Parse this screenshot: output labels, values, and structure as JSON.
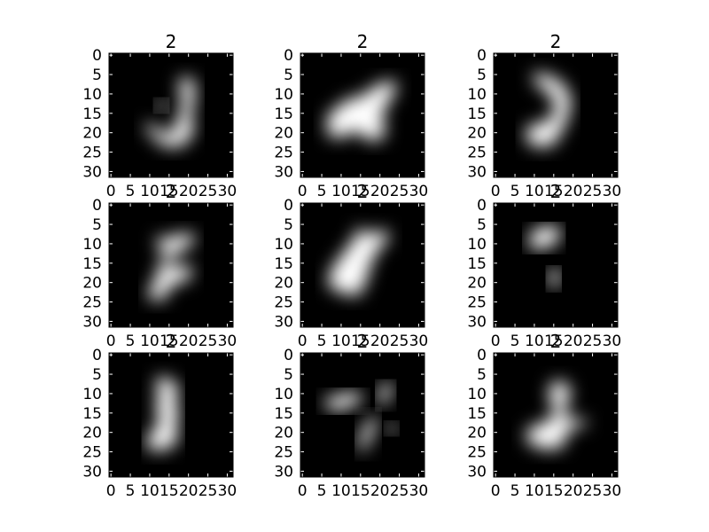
{
  "chart_data": {
    "type": "heatmap",
    "layout": "3x3 grid of 32x32 grayscale images",
    "image_size": 32,
    "colormap": "gray",
    "xticks": [
      "0",
      "5",
      "10",
      "15",
      "20",
      "25",
      "30"
    ],
    "yticks": [
      "0",
      "5",
      "10",
      "15",
      "20",
      "25",
      "30"
    ],
    "panels": [
      {
        "title": "2",
        "description": "generated digit sample, hook shape top-right with loop at bottom"
      },
      {
        "title": "2",
        "description": "generated digit sample, slanted blob with notch"
      },
      {
        "title": "2",
        "description": "generated digit sample, curved stroke top with blob bottom"
      },
      {
        "title": "2",
        "description": "generated digit sample, z-like shape"
      },
      {
        "title": "2",
        "description": "generated digit sample, large tilted blob"
      },
      {
        "title": "2",
        "description": "generated digit sample, blob top with small dots below"
      },
      {
        "title": "2",
        "description": "generated digit sample, stacked vertical blobs"
      },
      {
        "title": "2",
        "description": "generated digit sample, scattered strokes"
      },
      {
        "title": "2",
        "description": "generated digit sample, 3-like stroke with base blob"
      }
    ]
  }
}
